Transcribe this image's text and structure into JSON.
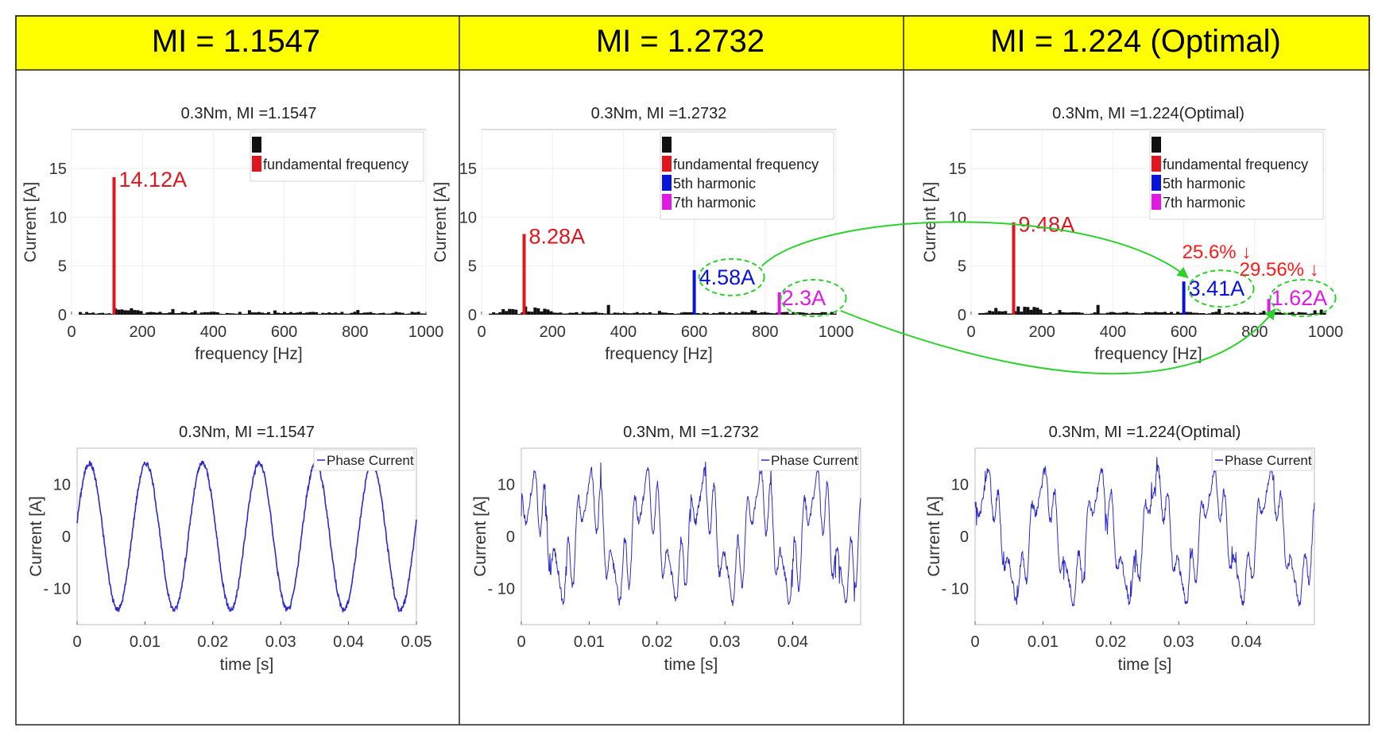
{
  "columns": [
    {
      "header": "MI = 1.1547",
      "spectrum": {
        "title": "0.3Nm, MI =1.1547",
        "legend": [
          "",
          "fundamental frequency"
        ],
        "peaks": [
          {
            "label": "14.12A",
            "series": "fundamental frequency"
          }
        ]
      },
      "waveform": {
        "title": "0.3Nm, MI =1.1547",
        "legend": "Phase Current"
      }
    },
    {
      "header": "MI = 1.2732",
      "spectrum": {
        "title": "0.3Nm, MI =1.2732",
        "legend": [
          "",
          "fundamental frequency",
          "5th harmonic",
          "7th harmonic"
        ],
        "peaks": [
          {
            "label": "8.28A",
            "series": "fundamental frequency"
          },
          {
            "label": "4.58A",
            "series": "5th harmonic"
          },
          {
            "label": "2.3A",
            "series": "7th harmonic"
          }
        ]
      },
      "waveform": {
        "title": "0.3Nm, MI =1.2732",
        "legend": "Phase Current"
      }
    },
    {
      "header": "MI = 1.224 (Optimal)",
      "spectrum": {
        "title": "0.3Nm, MI =1.224(Optimal)",
        "legend": [
          "",
          "fundamental frequency",
          "5th harmonic",
          "7th harmonic"
        ],
        "peaks": [
          {
            "label": "9.48A",
            "series": "fundamental frequency"
          },
          {
            "label": "3.41A",
            "series": "5th harmonic"
          },
          {
            "label": "1.62A",
            "series": "7th harmonic"
          }
        ]
      },
      "waveform": {
        "title": "0.3Nm, MI =1.224(Optimal)",
        "legend": "Phase Current"
      }
    }
  ],
  "spectrum_axes": {
    "xlabel": "frequency [Hz]",
    "ylabel": "Current [A]",
    "xticks": [
      "0",
      "200",
      "400",
      "600",
      "800",
      "1000"
    ],
    "yticks": [
      "0",
      "5",
      "10",
      "15"
    ]
  },
  "waveform_axes": {
    "xlabel": "time [s]",
    "ylabel": "Current [A]",
    "xticks_full": [
      "0",
      "0.01",
      "0.02",
      "0.03",
      "0.04",
      "0.05"
    ],
    "xticks_short": [
      "0",
      "0.01",
      "0.02",
      "0.03",
      "0.04"
    ],
    "yticks": [
      "10",
      "0",
      "- 10"
    ]
  },
  "reductions": {
    "fifth": "25.6% ↓",
    "seventh": "29.56% ↓"
  },
  "colors": {
    "header_bg": "#FFFF00",
    "fundamental": "#E0161E",
    "fifth": "#0A14D8",
    "seventh": "#E11AE3",
    "reduction": "#FF1A1A",
    "arrow": "#2CD12C",
    "wave": "#2B2BCC",
    "noise": "#111111"
  },
  "chart_data": [
    {
      "type": "bar",
      "title": "0.3Nm, MI =1.1547",
      "xlabel": "frequency [Hz]",
      "ylabel": "Current [A]",
      "xlim": [
        0,
        1000
      ],
      "ylim": [
        0,
        19
      ],
      "series": [
        {
          "name": "fundamental frequency",
          "x": [
            120
          ],
          "values": [
            14.12
          ]
        }
      ]
    },
    {
      "type": "bar",
      "title": "0.3Nm, MI =1.2732",
      "xlabel": "frequency [Hz]",
      "ylabel": "Current [A]",
      "xlim": [
        0,
        1000
      ],
      "ylim": [
        0,
        19
      ],
      "series": [
        {
          "name": "fundamental frequency",
          "x": [
            120
          ],
          "values": [
            8.28
          ]
        },
        {
          "name": "5th harmonic",
          "x": [
            600
          ],
          "values": [
            4.58
          ]
        },
        {
          "name": "7th harmonic",
          "x": [
            840
          ],
          "values": [
            2.3
          ]
        }
      ]
    },
    {
      "type": "bar",
      "title": "0.3Nm, MI =1.224(Optimal)",
      "xlabel": "frequency [Hz]",
      "ylabel": "Current [A]",
      "xlim": [
        0,
        1000
      ],
      "ylim": [
        0,
        19
      ],
      "series": [
        {
          "name": "fundamental frequency",
          "x": [
            120
          ],
          "values": [
            9.48
          ]
        },
        {
          "name": "5th harmonic",
          "x": [
            600
          ],
          "values": [
            3.41
          ]
        },
        {
          "name": "7th harmonic",
          "x": [
            840
          ],
          "values": [
            1.62
          ]
        }
      ]
    },
    {
      "type": "line",
      "title": "0.3Nm, MI =1.1547",
      "xlabel": "time [s]",
      "ylabel": "Current [A]",
      "xlim": [
        0,
        0.05
      ],
      "ylim": [
        -17,
        17
      ],
      "series": [
        {
          "name": "Phase Current",
          "fundamental_hz": 120,
          "amplitude_a": 14.12,
          "harmonics": []
        }
      ]
    },
    {
      "type": "line",
      "title": "0.3Nm, MI =1.2732",
      "xlabel": "time [s]",
      "ylabel": "Current [A]",
      "xlim": [
        0,
        0.05
      ],
      "ylim": [
        -17,
        17
      ],
      "series": [
        {
          "name": "Phase Current",
          "fundamental_hz": 120,
          "amplitude_a": 8.28,
          "harmonics": [
            {
              "order": 5,
              "amplitude_a": 4.58
            },
            {
              "order": 7,
              "amplitude_a": 2.3
            }
          ]
        }
      ]
    },
    {
      "type": "line",
      "title": "0.3Nm, MI =1.224(Optimal)",
      "xlabel": "time [s]",
      "ylabel": "Current [A]",
      "xlim": [
        0,
        0.05
      ],
      "ylim": [
        -17,
        17
      ],
      "series": [
        {
          "name": "Phase Current",
          "fundamental_hz": 120,
          "amplitude_a": 9.48,
          "harmonics": [
            {
              "order": 5,
              "amplitude_a": 3.41
            },
            {
              "order": 7,
              "amplitude_a": 1.62
            }
          ]
        }
      ]
    }
  ]
}
